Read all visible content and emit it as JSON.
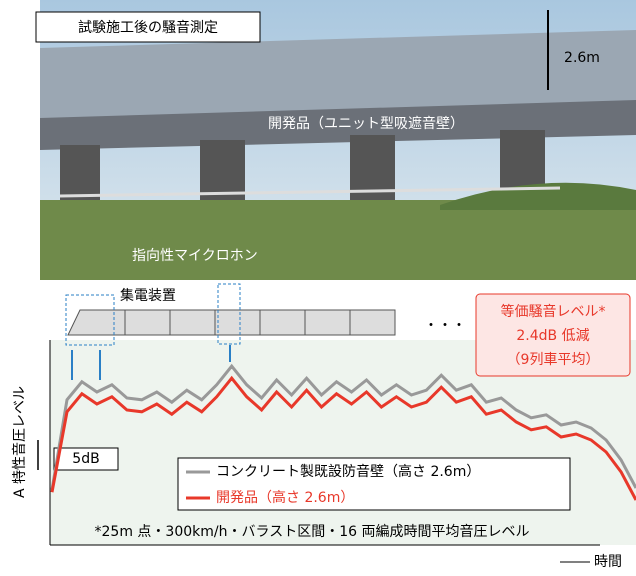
{
  "photo": {
    "title": "試験施工後の騒音測定",
    "height_label": "2.6m",
    "wall_label": "開発品（ユニット型吸遮音壁）",
    "mic_label": "指向性マイクロホン"
  },
  "train": {
    "label": "集電装置",
    "more": "・・・"
  },
  "chart_data": {
    "type": "line",
    "y_label": "A 特性音圧レベル",
    "x_label": "時間",
    "scale_bar": {
      "value": 5,
      "label": "5dB"
    },
    "callout": [
      "等価騒音レベル*",
      "2.4dB 低減",
      "（9列車平均）"
    ],
    "footnote": "*25m 点・300km/h・バラスト区間・16 両編成時間平均音圧レベル",
    "series": [
      {
        "name": "コンクリート製既設防音壁（高さ 2.6m）",
        "color": "#999999",
        "values": [
          9.2,
          24.2,
          27.2,
          25.5,
          26.7,
          24.5,
          24.2,
          25.5,
          23.8,
          25.8,
          24.2,
          26.7,
          29.8,
          26.7,
          24.5,
          27.5,
          25,
          27.8,
          25,
          27.2,
          25.5,
          27.5,
          25,
          26.7,
          25,
          25.8,
          28.3,
          25.8,
          26.7,
          23.8,
          24.5,
          22.5,
          21.2,
          21.7,
          20,
          20.5,
          19.5,
          17.5,
          14.2,
          9.5
        ]
      },
      {
        "name": "開発品（高さ 2.6m）",
        "color": "#e8382a",
        "values": [
          8.8,
          22.2,
          25.2,
          23.5,
          24.7,
          22.5,
          22.2,
          23.5,
          21.8,
          23.8,
          22.2,
          24.7,
          27.8,
          24.7,
          22.5,
          25.5,
          23,
          25.8,
          23,
          25.2,
          23.5,
          25.5,
          23,
          24.7,
          23,
          23.8,
          26.3,
          23.8,
          24.7,
          21.8,
          22.5,
          20.5,
          19.2,
          19.7,
          18,
          18.5,
          17.5,
          15.5,
          12.2,
          7.5
        ]
      }
    ]
  }
}
